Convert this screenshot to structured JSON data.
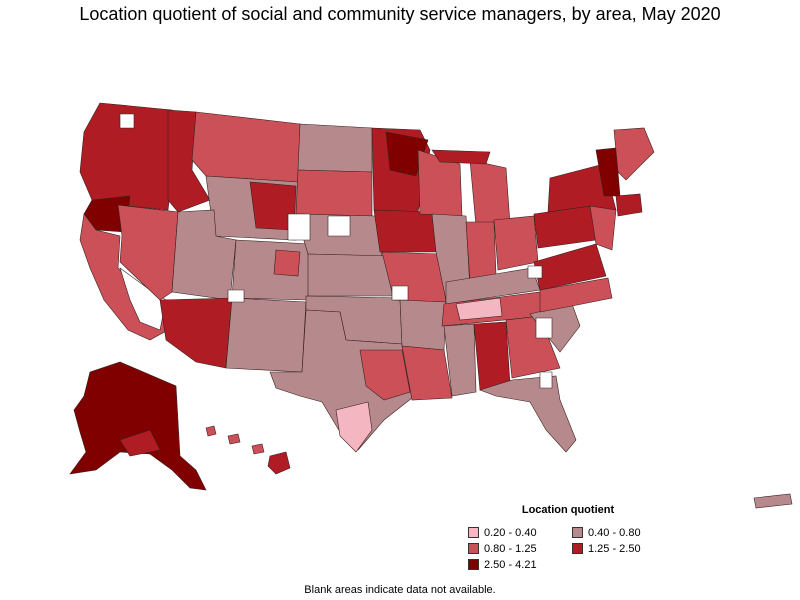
{
  "title": "Location quotient of social and community service managers, by area, May 2020",
  "legend": {
    "title": "Location quotient",
    "items": [
      {
        "label": "0.20 - 0.40",
        "color": "#f4b6c0"
      },
      {
        "label": "0.40 - 0.80",
        "color": "#b68a8c"
      },
      {
        "label": "0.80 - 1.25",
        "color": "#cc5058"
      },
      {
        "label": "1.25 - 2.50",
        "color": "#b01c24"
      },
      {
        "label": "2.50 - 4.21",
        "color": "#800000"
      }
    ]
  },
  "note": "Blank areas indicate data not available.",
  "colors": {
    "border": "#3a2020",
    "no_data": "#ffffff"
  }
}
